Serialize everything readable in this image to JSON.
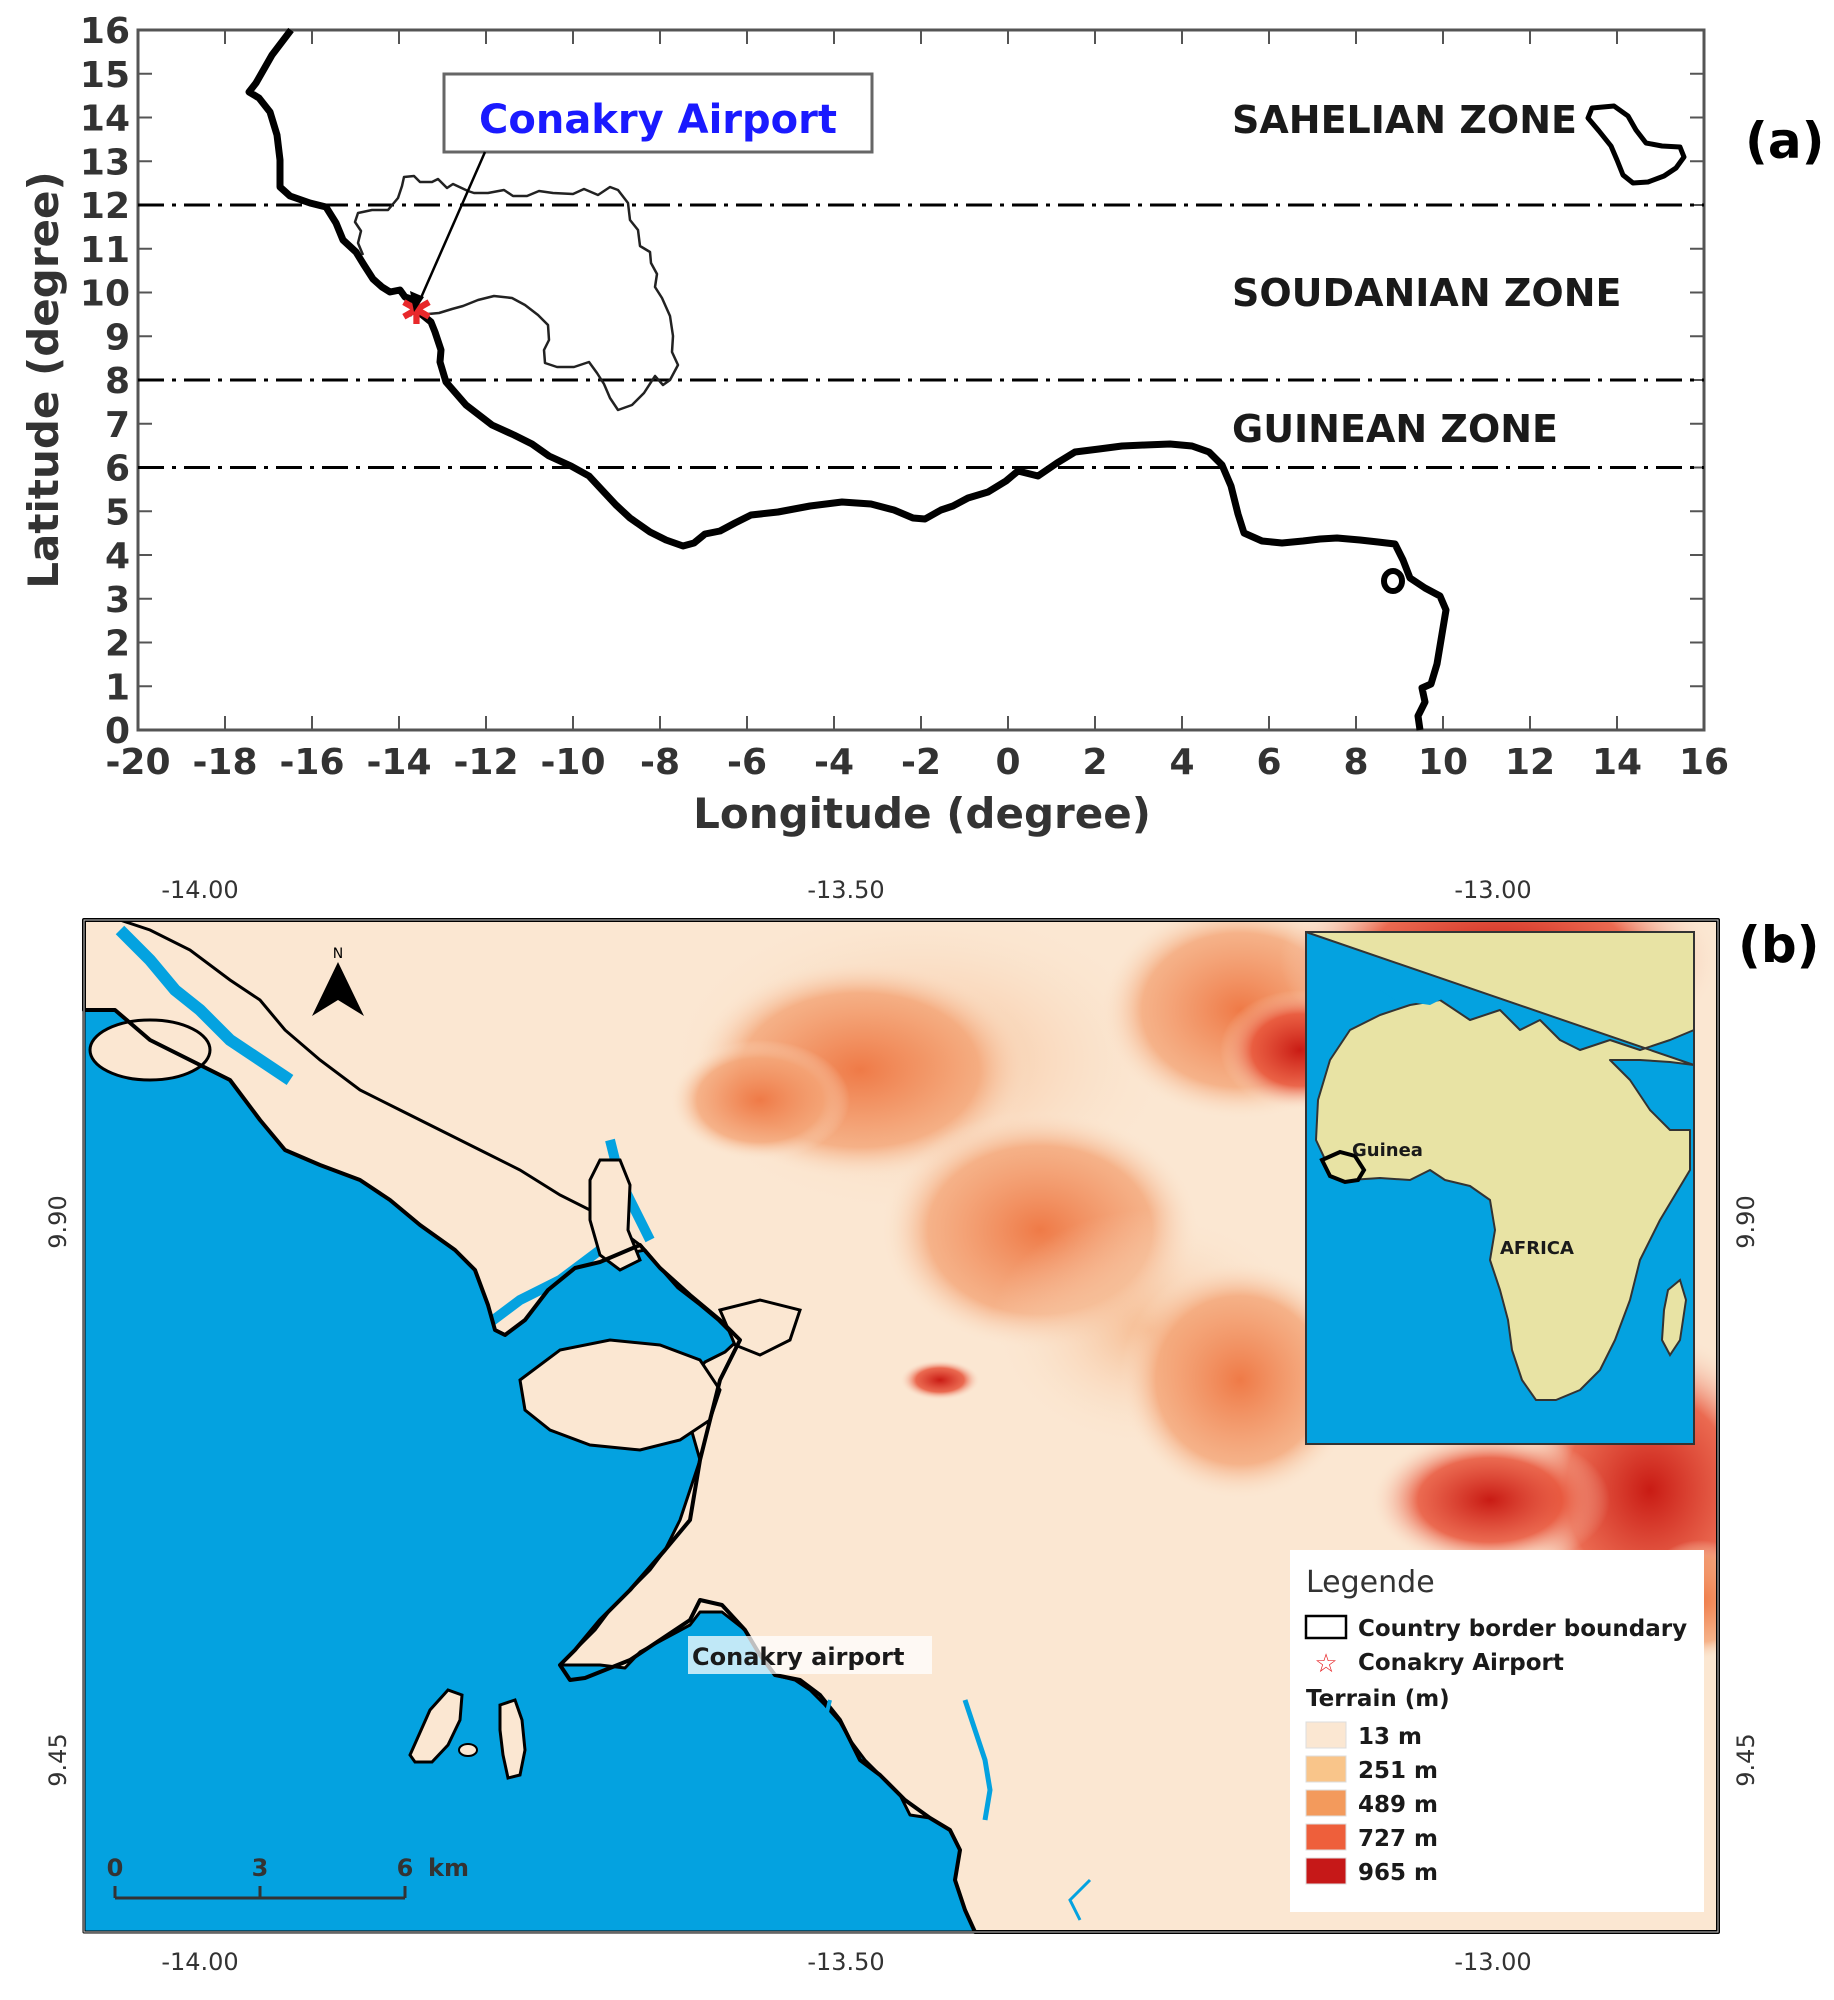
{
  "panel_a": {
    "label": "(a)",
    "xlabel": "Longitude (degree)",
    "ylabel": "Latitude (degree)",
    "xlim": [
      -20,
      16
    ],
    "ylim": [
      0,
      16
    ],
    "xticks": [
      "-20",
      "-18",
      "-16",
      "-14",
      "-12",
      "-10",
      "-8",
      "-6",
      "-4",
      "-2",
      "0",
      "2",
      "4",
      "6",
      "8",
      "10",
      "12",
      "14",
      "16"
    ],
    "yticks": [
      "0",
      "1",
      "2",
      "3",
      "4",
      "5",
      "6",
      "7",
      "8",
      "9",
      "10",
      "11",
      "12",
      "13",
      "14",
      "15",
      "16"
    ],
    "zone_lines_lat": [
      12,
      8,
      6
    ],
    "zones": [
      "SAHELIAN ZONE",
      "SOUDANIAN ZONE",
      "GUINEAN ZONE"
    ],
    "callout": "Conakry Airport",
    "airport_lon": -13.6,
    "airport_lat": 9.6,
    "colors": {
      "callout_text": "#1a1aff",
      "marker": "#e8282b",
      "lines": "#000000"
    }
  },
  "panel_b": {
    "label": "(b)",
    "top_ticks": [
      "-14.00",
      "-13.50",
      "-13.00"
    ],
    "bottom_ticks": [
      "-14.00",
      "-13.50",
      "-13.00"
    ],
    "left_ticks": [
      "9.90",
      "9.45"
    ],
    "right_ticks": [
      "9.90",
      "9.45"
    ],
    "north_label": "N",
    "airport_label": "Conakry airport",
    "inset": {
      "country": "Guinea",
      "continent": "AFRICA"
    },
    "scale": {
      "ticks": [
        "0",
        "3",
        "6"
      ],
      "unit": "km"
    },
    "legend": {
      "title": "Legende",
      "border_label": "Country border boundary",
      "airport_label": "Conakry Airport",
      "terrain_title": "Terrain (m)",
      "classes": [
        {
          "label": "13 m",
          "color": "#fbe7d2"
        },
        {
          "label": "251 m",
          "color": "#f9c58a"
        },
        {
          "label": "489 m",
          "color": "#f39a5c"
        },
        {
          "label": "727 m",
          "color": "#ee5f3b"
        },
        {
          "label": "965 m",
          "color": "#c61818"
        }
      ]
    },
    "colors": {
      "sea": "#04a2e0",
      "land": "#fbe7d2",
      "inset_land": "#e8e3a4"
    }
  }
}
